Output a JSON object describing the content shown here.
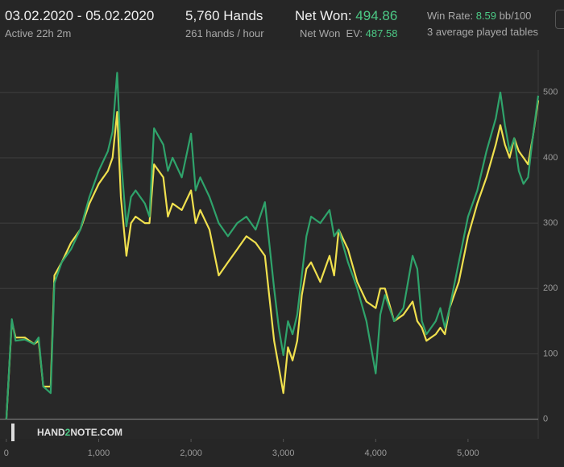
{
  "header": {
    "date_range": "03.02.2020 - 05.02.2020",
    "active": "Active 22h 2m",
    "hands": "5,760 Hands",
    "hands_per_hour": "261 hands / hour",
    "net_won": "494.86",
    "net_won_ev": "487.58",
    "win_rate_label": "Win Rate:",
    "win_rate": "8.59",
    "win_rate_unit": "bb/100",
    "tables": "3 average played tables"
  },
  "watermark": {
    "part1": "HAND",
    "part2": "2",
    "part3": "NOTE.COM"
  },
  "chart_data": {
    "type": "line",
    "x": [
      0,
      60,
      100,
      200,
      300,
      350,
      400,
      480,
      520,
      600,
      700,
      800,
      900,
      1000,
      1100,
      1150,
      1200,
      1240,
      1300,
      1350,
      1400,
      1500,
      1550,
      1600,
      1700,
      1750,
      1800,
      1900,
      2000,
      2050,
      2100,
      2200,
      2300,
      2400,
      2500,
      2600,
      2700,
      2800,
      2900,
      2950,
      3000,
      3050,
      3100,
      3150,
      3200,
      3250,
      3300,
      3400,
      3500,
      3550,
      3600,
      3700,
      3800,
      3900,
      4000,
      4050,
      4100,
      4200,
      4300,
      4400,
      4450,
      4500,
      4550,
      4650,
      4700,
      4750,
      4800,
      4900,
      5000,
      5100,
      5200,
      5300,
      5350,
      5400,
      5450,
      5500,
      5550,
      5600,
      5650,
      5700,
      5760
    ],
    "series": [
      {
        "name": "Net Won:",
        "color": "#2fa36b",
        "values": [
          0,
          153,
          120,
          122,
          115,
          125,
          50,
          40,
          208,
          240,
          260,
          290,
          340,
          380,
          410,
          440,
          530,
          400,
          295,
          340,
          350,
          330,
          310,
          445,
          420,
          380,
          400,
          370,
          437,
          350,
          370,
          340,
          300,
          280,
          300,
          310,
          290,
          332,
          200,
          140,
          98,
          150,
          130,
          160,
          220,
          280,
          310,
          300,
          320,
          280,
          290,
          240,
          200,
          150,
          70,
          160,
          190,
          150,
          170,
          250,
          230,
          150,
          130,
          150,
          170,
          140,
          170,
          240,
          310,
          350,
          410,
          460,
          500,
          450,
          410,
          430,
          380,
          360,
          370,
          430,
          495
        ]
      },
      {
        "name": "Net Won  EV:",
        "color": "#f0e04e",
        "values": [
          0,
          150,
          125,
          125,
          115,
          120,
          50,
          50,
          220,
          240,
          270,
          290,
          330,
          360,
          380,
          400,
          470,
          340,
          250,
          300,
          310,
          300,
          300,
          390,
          370,
          310,
          330,
          320,
          350,
          300,
          320,
          290,
          220,
          240,
          260,
          280,
          270,
          250,
          120,
          80,
          40,
          110,
          90,
          120,
          190,
          230,
          240,
          210,
          250,
          220,
          290,
          260,
          210,
          180,
          170,
          200,
          200,
          150,
          160,
          180,
          150,
          140,
          120,
          130,
          140,
          130,
          170,
          210,
          280,
          330,
          370,
          420,
          450,
          420,
          400,
          430,
          410,
          400,
          390,
          430,
          488
        ]
      }
    ],
    "xlim": [
      -25,
      5760
    ],
    "ylim": [
      -30,
      565
    ],
    "xticks": [
      0,
      {
        "value": 1000,
        "label": "1,000"
      },
      {
        "value": 2000,
        "label": "2,000"
      },
      {
        "value": 3000,
        "label": "3,000"
      },
      {
        "value": 4000,
        "label": "4,000"
      },
      {
        "value": 5000,
        "label": "5,000"
      }
    ],
    "yticks": [
      0,
      100,
      200,
      300,
      400,
      500
    ],
    "grid": true
  }
}
